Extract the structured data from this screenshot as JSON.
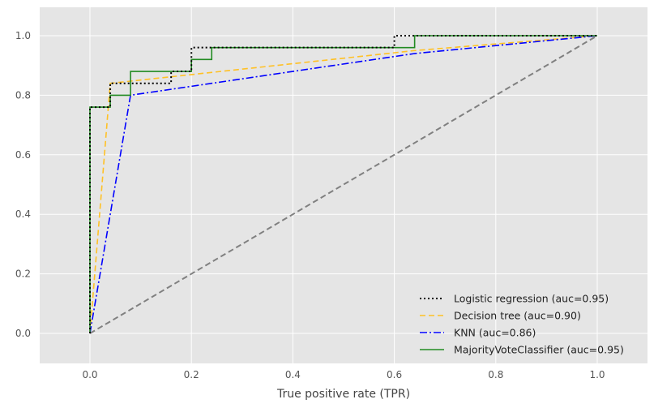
{
  "chart_data": {
    "type": "line",
    "title": "",
    "xlabel": "True positive rate (TPR)",
    "ylabel": "",
    "xlim": [
      -0.1,
      1.1
    ],
    "ylim": [
      -0.1,
      1.1
    ],
    "xticks": [
      "0.0",
      "0.2",
      "0.4",
      "0.6",
      "0.8",
      "1.0"
    ],
    "yticks": [
      "0.0",
      "0.2",
      "0.4",
      "0.6",
      "0.8",
      "1.0"
    ],
    "grid": true,
    "legend_position": "lower-right",
    "background": "#e5e5e5",
    "series": [
      {
        "name": "Logistic regression (auc=0.95)",
        "color": "#000000",
        "style": "dotted",
        "x": [
          0,
          0,
          0.04,
          0.04,
          0.16,
          0.16,
          0.2,
          0.2,
          0.24,
          0.24,
          0.6,
          0.6,
          0.64,
          0.64,
          1.0
        ],
        "y": [
          0,
          0.76,
          0.76,
          0.84,
          0.84,
          0.88,
          0.88,
          0.96,
          0.96,
          0.96,
          0.96,
          1.0,
          1.0,
          1.0,
          1.0
        ]
      },
      {
        "name": "Decision tree (auc=0.90)",
        "color": "#ffc125",
        "style": "dashed",
        "x": [
          0,
          0.04,
          0.64,
          1.0
        ],
        "y": [
          0,
          0.84,
          0.95,
          1.0
        ]
      },
      {
        "name": "KNN (auc=0.86)",
        "color": "#0000ff",
        "style": "dashdot",
        "x": [
          0,
          0.08,
          0.64,
          1.0
        ],
        "y": [
          0,
          0.8,
          0.94,
          1.0
        ]
      },
      {
        "name": "MajorityVoteClassifier (auc=0.95)",
        "color": "#228b22",
        "style": "solid",
        "x": [
          0,
          0,
          0.04,
          0.04,
          0.08,
          0.08,
          0.2,
          0.2,
          0.24,
          0.24,
          0.64,
          0.64,
          1.0
        ],
        "y": [
          0,
          0.76,
          0.76,
          0.8,
          0.8,
          0.88,
          0.88,
          0.92,
          0.92,
          0.96,
          0.96,
          1.0,
          1.0
        ]
      }
    ],
    "reference_line": {
      "color": "#808080",
      "style": "dashed",
      "x": [
        0,
        1
      ],
      "y": [
        0,
        1
      ]
    }
  }
}
